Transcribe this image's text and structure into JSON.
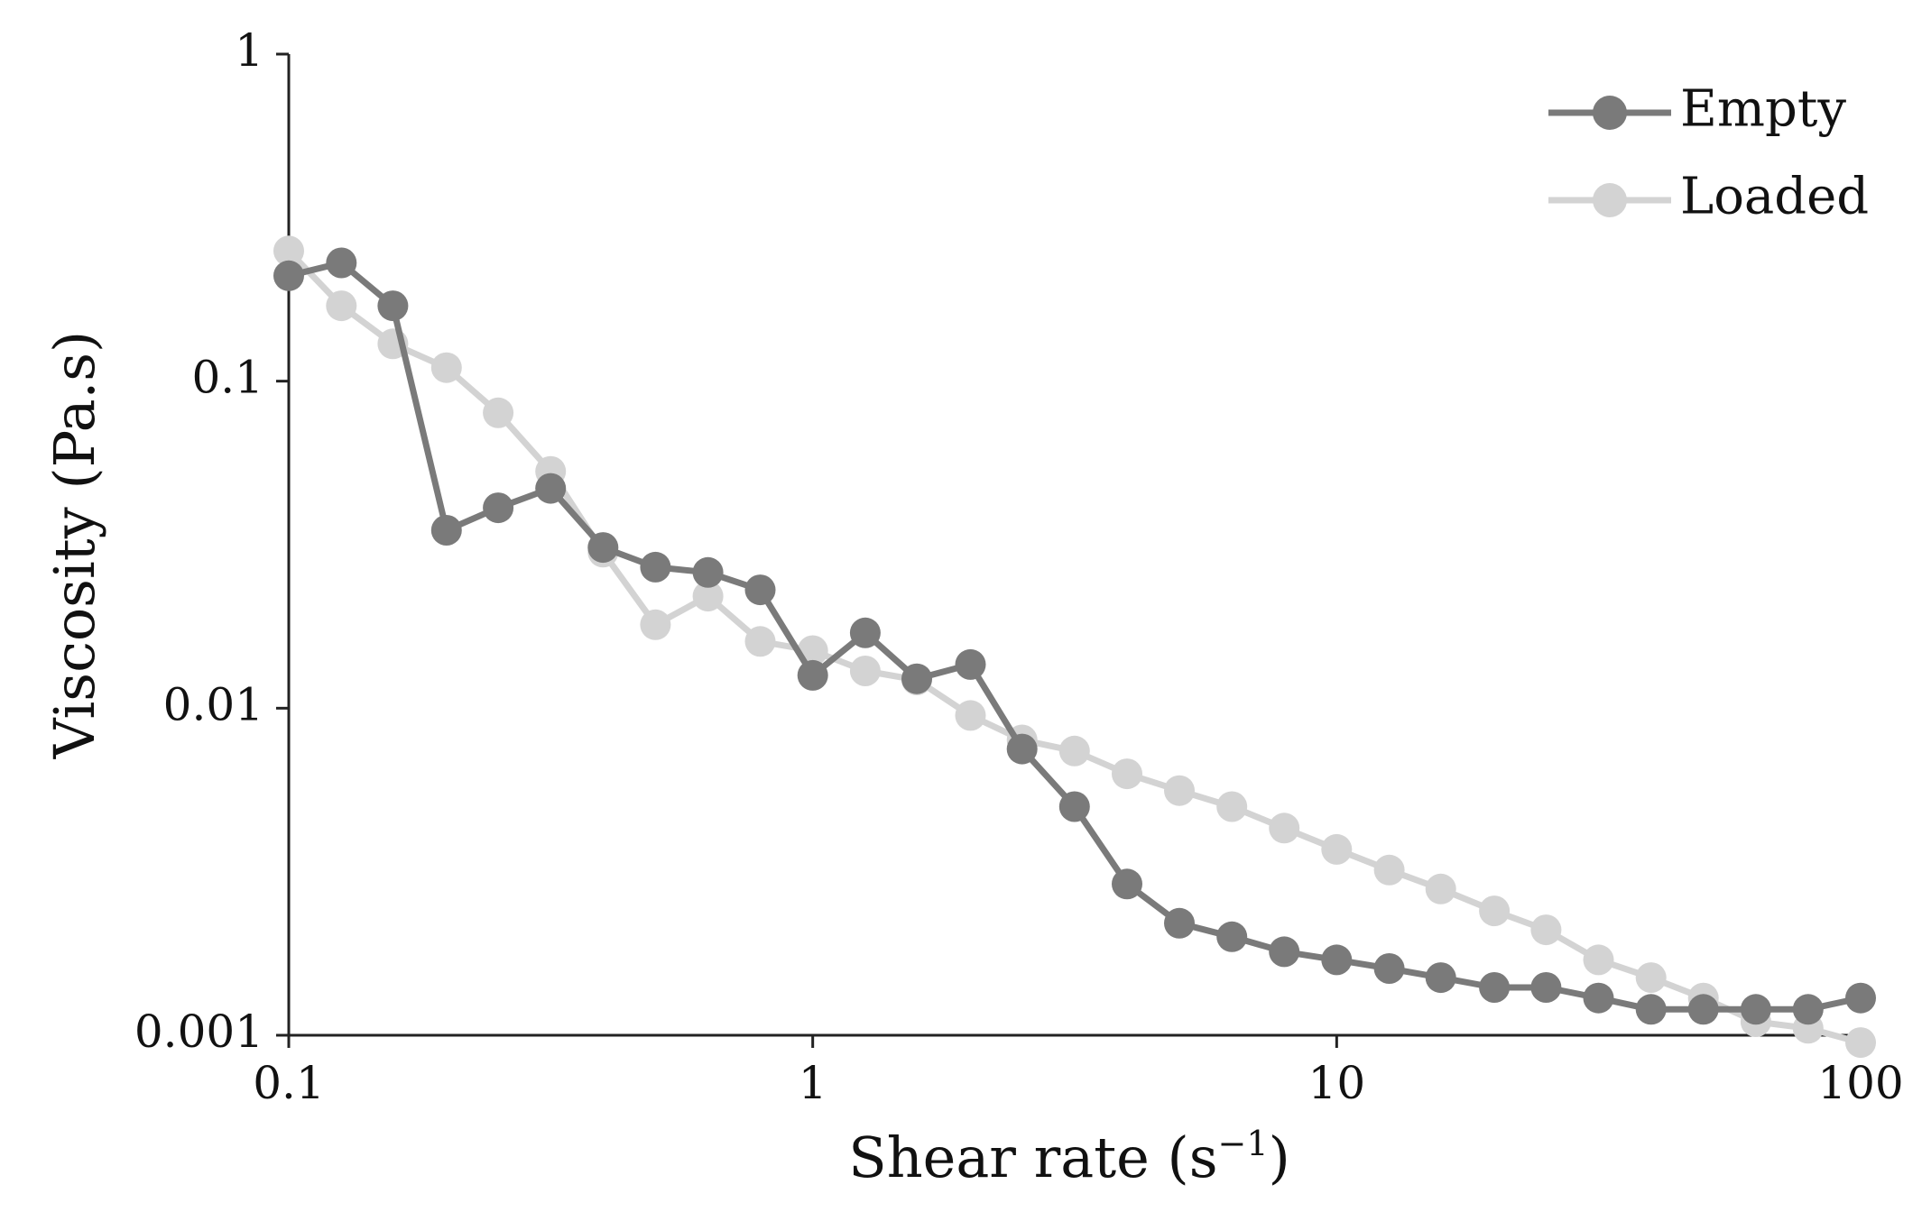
{
  "chart_data": {
    "type": "line",
    "title": "",
    "xlabel": "Shear rate (s",
    "xlabel_superscript": "−1",
    "xlabel_suffix": ")",
    "ylabel": "Viscosity (Pa.s)",
    "x_scale": "log",
    "y_scale": "log",
    "xlim": [
      0.1,
      100
    ],
    "ylim": [
      0.001,
      1
    ],
    "x_ticks": [
      {
        "value": 0.1,
        "label": "0.1"
      },
      {
        "value": 1,
        "label": "1"
      },
      {
        "value": 10,
        "label": "10"
      },
      {
        "value": 100,
        "label": "100"
      }
    ],
    "y_ticks": [
      {
        "value": 1,
        "label": "1"
      },
      {
        "value": 0.1,
        "label": "0.1"
      },
      {
        "value": 0.01,
        "label": "0.01"
      },
      {
        "value": 0.001,
        "label": "0.001"
      }
    ],
    "grid": false,
    "legend_position": "top-right",
    "x": [
      0.1,
      0.126,
      0.158,
      0.2,
      0.251,
      0.316,
      0.398,
      0.501,
      0.631,
      0.794,
      1,
      1.26,
      1.58,
      2,
      2.51,
      3.16,
      3.98,
      5.01,
      6.31,
      7.94,
      10,
      12.6,
      15.8,
      20,
      25.1,
      31.6,
      39.8,
      50.1,
      63.1,
      79.4,
      100
    ],
    "series": [
      {
        "name": "Empty",
        "color": "#7a7a7a",
        "values": [
          0.21,
          0.23,
          0.17,
          0.035,
          0.041,
          0.047,
          0.031,
          0.027,
          0.026,
          0.023,
          0.0126,
          0.017,
          0.0123,
          0.0136,
          0.0075,
          0.005,
          0.0029,
          0.0022,
          0.002,
          0.0018,
          0.0017,
          0.0016,
          0.0015,
          0.0014,
          0.0014,
          0.0013,
          0.0012,
          0.0012,
          0.0012,
          0.0012,
          0.0013
        ]
      },
      {
        "name": "Loaded",
        "color": "#d3d3d3",
        "values": [
          0.25,
          0.17,
          0.13,
          0.11,
          0.08,
          0.053,
          0.03,
          0.018,
          0.022,
          0.016,
          0.015,
          0.013,
          0.0122,
          0.0095,
          0.008,
          0.0074,
          0.0063,
          0.0056,
          0.005,
          0.0043,
          0.0037,
          0.0032,
          0.0028,
          0.0024,
          0.0021,
          0.0017,
          0.0015,
          0.0013,
          0.0011,
          0.00105,
          0.00095
        ]
      }
    ]
  }
}
